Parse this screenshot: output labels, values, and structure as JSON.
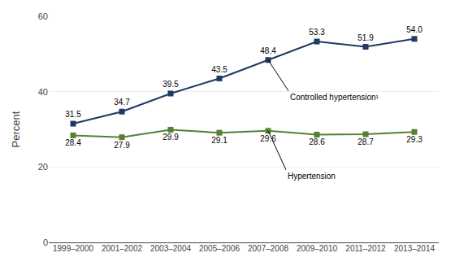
{
  "chart_data": {
    "type": "line",
    "categories": [
      "1999–2000",
      "2001–2002",
      "2003–2004",
      "2005–2006",
      "2007–2008",
      "2009–2010",
      "2011–2012",
      "2013–2014"
    ],
    "series": [
      {
        "name": "Controlled hypertension¹",
        "color": "#1F3864",
        "marker": "square",
        "values": [
          31.5,
          34.7,
          39.5,
          43.5,
          48.4,
          53.3,
          51.9,
          54.0
        ],
        "value_labels": [
          "31.5",
          "34.7",
          "39.5",
          "43.5",
          "48.4",
          "53.3",
          "51.9",
          "54.0"
        ]
      },
      {
        "name": "Hypertension",
        "color": "#538135",
        "marker": "square",
        "values": [
          28.4,
          27.9,
          29.9,
          29.1,
          29.6,
          28.6,
          28.7,
          29.3
        ],
        "value_labels": [
          "28.4",
          "27.9",
          "29.9",
          "29.1",
          "29.6",
          "28.6",
          "28.7",
          "29.3"
        ]
      }
    ],
    "ylabel": "Percent",
    "ylim": [
      0,
      60
    ],
    "yticks": [
      0,
      20,
      40,
      60
    ],
    "grid": true,
    "data_labels": true
  }
}
